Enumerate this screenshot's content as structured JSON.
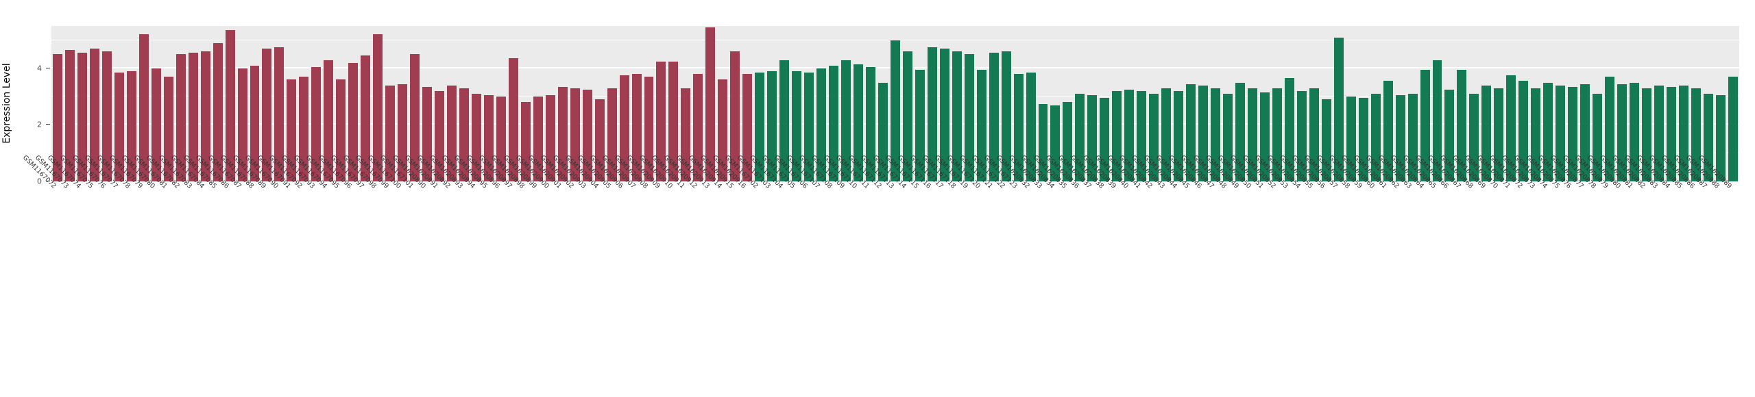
{
  "chart_data": {
    "type": "bar",
    "title": "",
    "xlabel": "",
    "ylabel": "Expression Level",
    "ylim": [
      0,
      5.5
    ],
    "yticks": [
      0,
      2,
      4
    ],
    "yticks_minor": [
      1,
      3,
      5
    ],
    "panel_background": "#EBEBEB",
    "gridline_color": "#FFFFFF",
    "legend": "none",
    "groups": [
      {
        "name": "group-1-red",
        "color": "#A13D51",
        "labels": [
          "GSM1167072",
          "GSM1167073",
          "GSM1167074",
          "GSM1167075",
          "GSM1167076",
          "GSM1167077",
          "GSM1167078",
          "GSM1167079",
          "GSM1167080",
          "GSM1167081",
          "GSM1167082",
          "GSM1167083",
          "GSM1167084",
          "GSM1167085",
          "GSM1167086",
          "GSM1167087",
          "GSM1167088",
          "GSM1167089",
          "GSM1167090",
          "GSM1167091",
          "GSM1167092",
          "GSM1167093",
          "GSM1167094",
          "GSM1167095",
          "GSM1167096",
          "GSM1167097",
          "GSM1167098",
          "GSM1167099",
          "GSM1167100",
          "GSM1167101",
          "GSM1620890",
          "GSM1620891",
          "GSM1620892",
          "GSM1620893",
          "GSM1620894",
          "GSM1620895",
          "GSM1620896",
          "GSM1620897",
          "GSM1620898",
          "GSM1620899",
          "GSM1620900",
          "GSM1620901",
          "GSM1620902",
          "GSM1620903",
          "GSM1620904",
          "GSM1620905",
          "GSM1620906",
          "GSM1620907",
          "GSM1620908",
          "GSM1620909",
          "GSM1620910",
          "GSM1620911",
          "GSM1620912",
          "GSM1620913",
          "GSM1620914",
          "GSM1620915",
          "GSM1620916"
        ],
        "values": [
          4.5,
          4.65,
          4.55,
          4.7,
          4.6,
          3.85,
          3.9,
          5.2,
          4.0,
          3.7,
          4.5,
          4.55,
          4.6,
          4.9,
          5.35,
          4.0,
          4.1,
          4.7,
          4.75,
          3.6,
          3.7,
          4.05,
          4.3,
          3.6,
          4.2,
          4.45,
          5.2,
          3.4,
          3.45,
          4.5,
          3.35,
          3.2,
          3.4,
          3.3,
          3.1,
          3.05,
          3.0,
          4.35,
          2.8,
          3.0,
          3.05,
          3.35,
          3.3,
          3.25,
          2.9,
          3.3,
          3.75,
          3.8,
          3.7,
          4.25,
          4.25,
          3.3,
          3.8,
          5.45,
          3.6,
          4.6,
          3.8
        ]
      },
      {
        "name": "group-2-green",
        "color": "#137A53",
        "labels": [
          "GSM1167102",
          "GSM1167103",
          "GSM1167104",
          "GSM1167105",
          "GSM1167106",
          "GSM1167107",
          "GSM1167108",
          "GSM1167109",
          "GSM1167110",
          "GSM1167111",
          "GSM1167112",
          "GSM1167113",
          "GSM1167114",
          "GSM1167115",
          "GSM1167116",
          "GSM1167117",
          "GSM1167118",
          "GSM1167119",
          "GSM1167120",
          "GSM1167121",
          "GSM1167122",
          "GSM1167123",
          "GSM1620832",
          "GSM1620833",
          "GSM1620834",
          "GSM1620835",
          "GSM1620836",
          "GSM1620837",
          "GSM1620838",
          "GSM1620839",
          "GSM1620840",
          "GSM1620841",
          "GSM1620842",
          "GSM1620843",
          "GSM1620844",
          "GSM1620845",
          "GSM1620846",
          "GSM1620847",
          "GSM1620848",
          "GSM1620849",
          "GSM1620850",
          "GSM1620851",
          "GSM1620852",
          "GSM1620853",
          "GSM1620854",
          "GSM1620855",
          "GSM1620856",
          "GSM1620857",
          "GSM1620858",
          "GSM1620859",
          "GSM1620860",
          "GSM1620861",
          "GSM1620862",
          "GSM1620863",
          "GSM1620864",
          "GSM1620865",
          "GSM1620866",
          "GSM1620867",
          "GSM1620868",
          "GSM1620869",
          "GSM1620870",
          "GSM1620871",
          "GSM1620872",
          "GSM1620873",
          "GSM1620874",
          "GSM1620875",
          "GSM1620876",
          "GSM1620877",
          "GSM1620878",
          "GSM1620879",
          "GSM1620880",
          "GSM1620881",
          "GSM1620882",
          "GSM1620883",
          "GSM1620884",
          "GSM1620885",
          "GSM1620886",
          "GSM1620887",
          "GSM1620888",
          "GSM1620889"
        ],
        "values": [
          3.85,
          3.9,
          4.3,
          3.9,
          3.85,
          4.0,
          4.1,
          4.3,
          4.15,
          4.05,
          3.5,
          5.0,
          4.6,
          3.95,
          4.75,
          4.7,
          4.6,
          4.5,
          3.95,
          4.55,
          4.6,
          3.8,
          3.85,
          2.75,
          2.7,
          2.8,
          3.1,
          3.05,
          2.95,
          3.2,
          3.25,
          3.2,
          3.1,
          3.3,
          3.2,
          3.45,
          3.4,
          3.3,
          3.1,
          3.5,
          3.3,
          3.15,
          3.3,
          3.65,
          3.2,
          3.3,
          2.9,
          5.1,
          3.0,
          2.95,
          3.1,
          3.55,
          3.05,
          3.1,
          3.95,
          4.3,
          3.25,
          3.95,
          3.1,
          3.4,
          3.3,
          3.75,
          3.55,
          3.3,
          3.5,
          3.4,
          3.35,
          3.45,
          3.1,
          3.7,
          3.45,
          3.5,
          3.3,
          3.4,
          3.35,
          3.4,
          3.3,
          3.1,
          3.05,
          3.7
        ]
      }
    ]
  }
}
